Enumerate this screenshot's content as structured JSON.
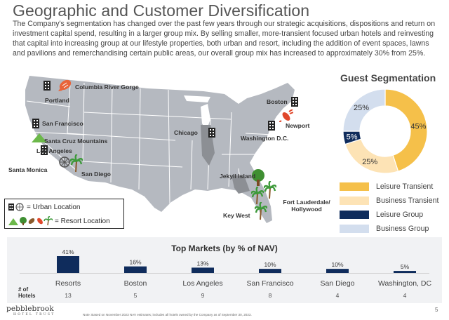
{
  "title": "Geographic and Customer Diversification",
  "body": "The Company's segmentation has changed over the past few years through our strategic acquisitions, dispositions and return on investment capital spend, resulting in a larger group mix. By selling smaller, more-transient focused urban hotels and reinvesting that capital into increasing group at our lifestyle properties, both urban and resort, including the addition of event spaces, lawns and pavilions and remerchandising certain public areas, our overall group mix has increased to approximately 30% from 25%.",
  "map": {
    "cities": {
      "columbia_river_gorge": "Columbia River Gorge",
      "portland": "Portland",
      "san_francisco": "San Francisco",
      "santa_cruz_mountains": "Santa Cruz Mountains",
      "los_angeles": "Los Angeles",
      "santa_monica": "Santa Monica",
      "san_diego": "San Diego",
      "chicago": "Chicago",
      "boston": "Boston",
      "newport": "Newport",
      "washington_dc": "Washington D.C.",
      "jekyll_island": "Jekyll Island",
      "fort_lauderdale": "Fort Lauderdale/ Hollywood",
      "key_west": "Key West"
    },
    "legend": {
      "urban": "= Urban Location",
      "resort": "= Resort Location"
    },
    "colors": {
      "land": "#b5b9c0",
      "borders": "#ffffff",
      "highlight": "#8c8f94"
    }
  },
  "segmentation": {
    "title": "Guest Segmentation",
    "slices": [
      {
        "name": "Leisure Transient",
        "value": 45,
        "label": "45%",
        "color": "#f5c04a"
      },
      {
        "name": "Business Transient",
        "value": 25,
        "label": "25%",
        "color": "#fde3b5"
      },
      {
        "name": "Leisure Group",
        "value": 5,
        "label": "5%",
        "color": "#0f2c5c"
      },
      {
        "name": "Business Group",
        "value": 25,
        "label": "25%",
        "color": "#d3deee"
      }
    ]
  },
  "chart_data": {
    "type": "bar",
    "title": "Top Markets (by % of NAV)",
    "categories": [
      "Resorts",
      "Boston",
      "Los Angeles",
      "San Francisco",
      "San Diego",
      "Washington, DC"
    ],
    "values": [
      41,
      16,
      13,
      10,
      10,
      5
    ],
    "value_labels": [
      "41%",
      "16%",
      "13%",
      "10%",
      "10%",
      "5%"
    ],
    "hotels_label": "# of Hotels",
    "hotels": [
      "13",
      "5",
      "9",
      "8",
      "4",
      "4"
    ],
    "ylim": [
      0,
      41
    ],
    "color": "#0f2c5c"
  },
  "footer": {
    "note": "Note: Based on November 2023 NAV estimates; includes all hotels owned by the Company as of September 30, 2023.",
    "page": "5",
    "logo_main": "pebblebrook",
    "logo_sub": "HOTEL TRUST"
  }
}
